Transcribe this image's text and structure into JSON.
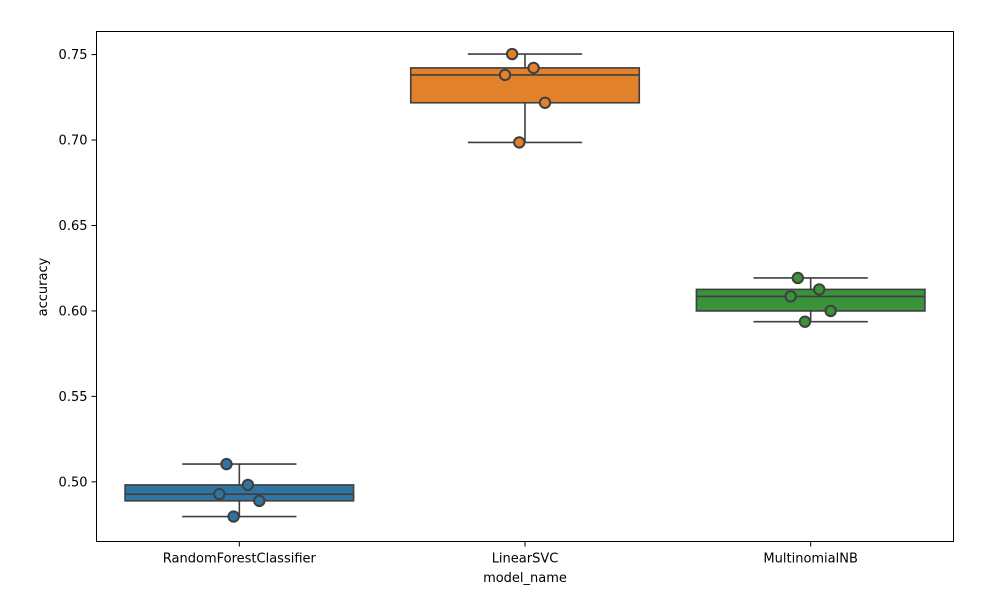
{
  "chart_data": {
    "type": "box",
    "xlabel": "model_name",
    "ylabel": "accuracy",
    "ylim": [
      0.4651,
      0.7635
    ],
    "yticks": [
      0.5,
      0.55,
      0.6,
      0.65,
      0.7,
      0.75
    ],
    "ytick_labels": [
      "0.50",
      "0.55",
      "0.60",
      "0.65",
      "0.70",
      "0.75"
    ],
    "grid": false,
    "categories": [
      "RandomForestClassifier",
      "LinearSVC",
      "MultinomialNB"
    ],
    "series": [
      {
        "category": "RandomForestClassifier",
        "color": "#3274a1",
        "box": {
          "whisker_low": 0.4797,
          "q1": 0.4889,
          "median": 0.4928,
          "q3": 0.4982,
          "whisker_high": 0.5104
        },
        "points": [
          0.5104,
          0.4982,
          0.4928,
          0.4889,
          0.4797
        ]
      },
      {
        "category": "LinearSVC",
        "color": "#e1812c",
        "box": {
          "whisker_low": 0.6986,
          "q1": 0.7218,
          "median": 0.7381,
          "q3": 0.7422,
          "whisker_high": 0.7503
        },
        "points": [
          0.7503,
          0.7422,
          0.7381,
          0.7218,
          0.6986
        ]
      },
      {
        "category": "MultinomialNB",
        "color": "#3a923a",
        "box": {
          "whisker_low": 0.5937,
          "q1": 0.6,
          "median": 0.6085,
          "q3": 0.6126,
          "whisker_high": 0.6193
        },
        "points": [
          0.6193,
          0.6126,
          0.6085,
          0.6,
          0.5937
        ]
      }
    ]
  }
}
